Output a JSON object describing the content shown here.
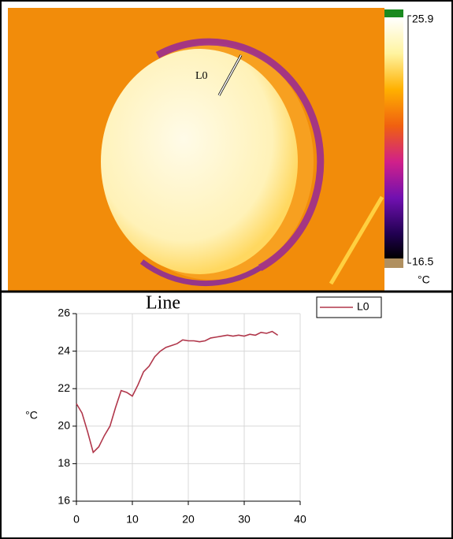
{
  "thermal_image": {
    "scale_max": "25.9",
    "scale_min": "16.5",
    "unit": "°C",
    "annotation": "L0"
  },
  "chart_data": {
    "type": "line",
    "title": "Line",
    "y_label": "°C",
    "x": [
      0,
      1,
      2,
      3,
      4,
      5,
      6,
      7,
      8,
      9,
      10,
      11,
      12,
      13,
      14,
      15,
      16,
      17,
      18,
      19,
      20,
      21,
      22,
      23,
      24,
      25,
      26,
      27,
      28,
      29,
      30,
      31,
      32,
      33,
      34,
      35,
      36
    ],
    "series": [
      {
        "name": "L0",
        "color": "#b0364a",
        "values": [
          21.2,
          20.7,
          19.7,
          18.6,
          18.9,
          19.5,
          20.0,
          21.0,
          21.9,
          21.8,
          21.6,
          22.2,
          22.9,
          23.2,
          23.7,
          24.0,
          24.2,
          24.3,
          24.4,
          24.6,
          24.55,
          24.55,
          24.5,
          24.55,
          24.7,
          24.75,
          24.8,
          24.85,
          24.8,
          24.85,
          24.8,
          24.9,
          24.85,
          25.0,
          24.95,
          25.05,
          24.85
        ]
      }
    ],
    "xlim": [
      0,
      40
    ],
    "xticks": [
      0,
      10,
      20,
      30,
      40
    ],
    "ylim": [
      16,
      26
    ],
    "yticks": [
      16,
      18,
      20,
      22,
      24,
      26
    ],
    "grid": true,
    "legend": "top-right"
  }
}
